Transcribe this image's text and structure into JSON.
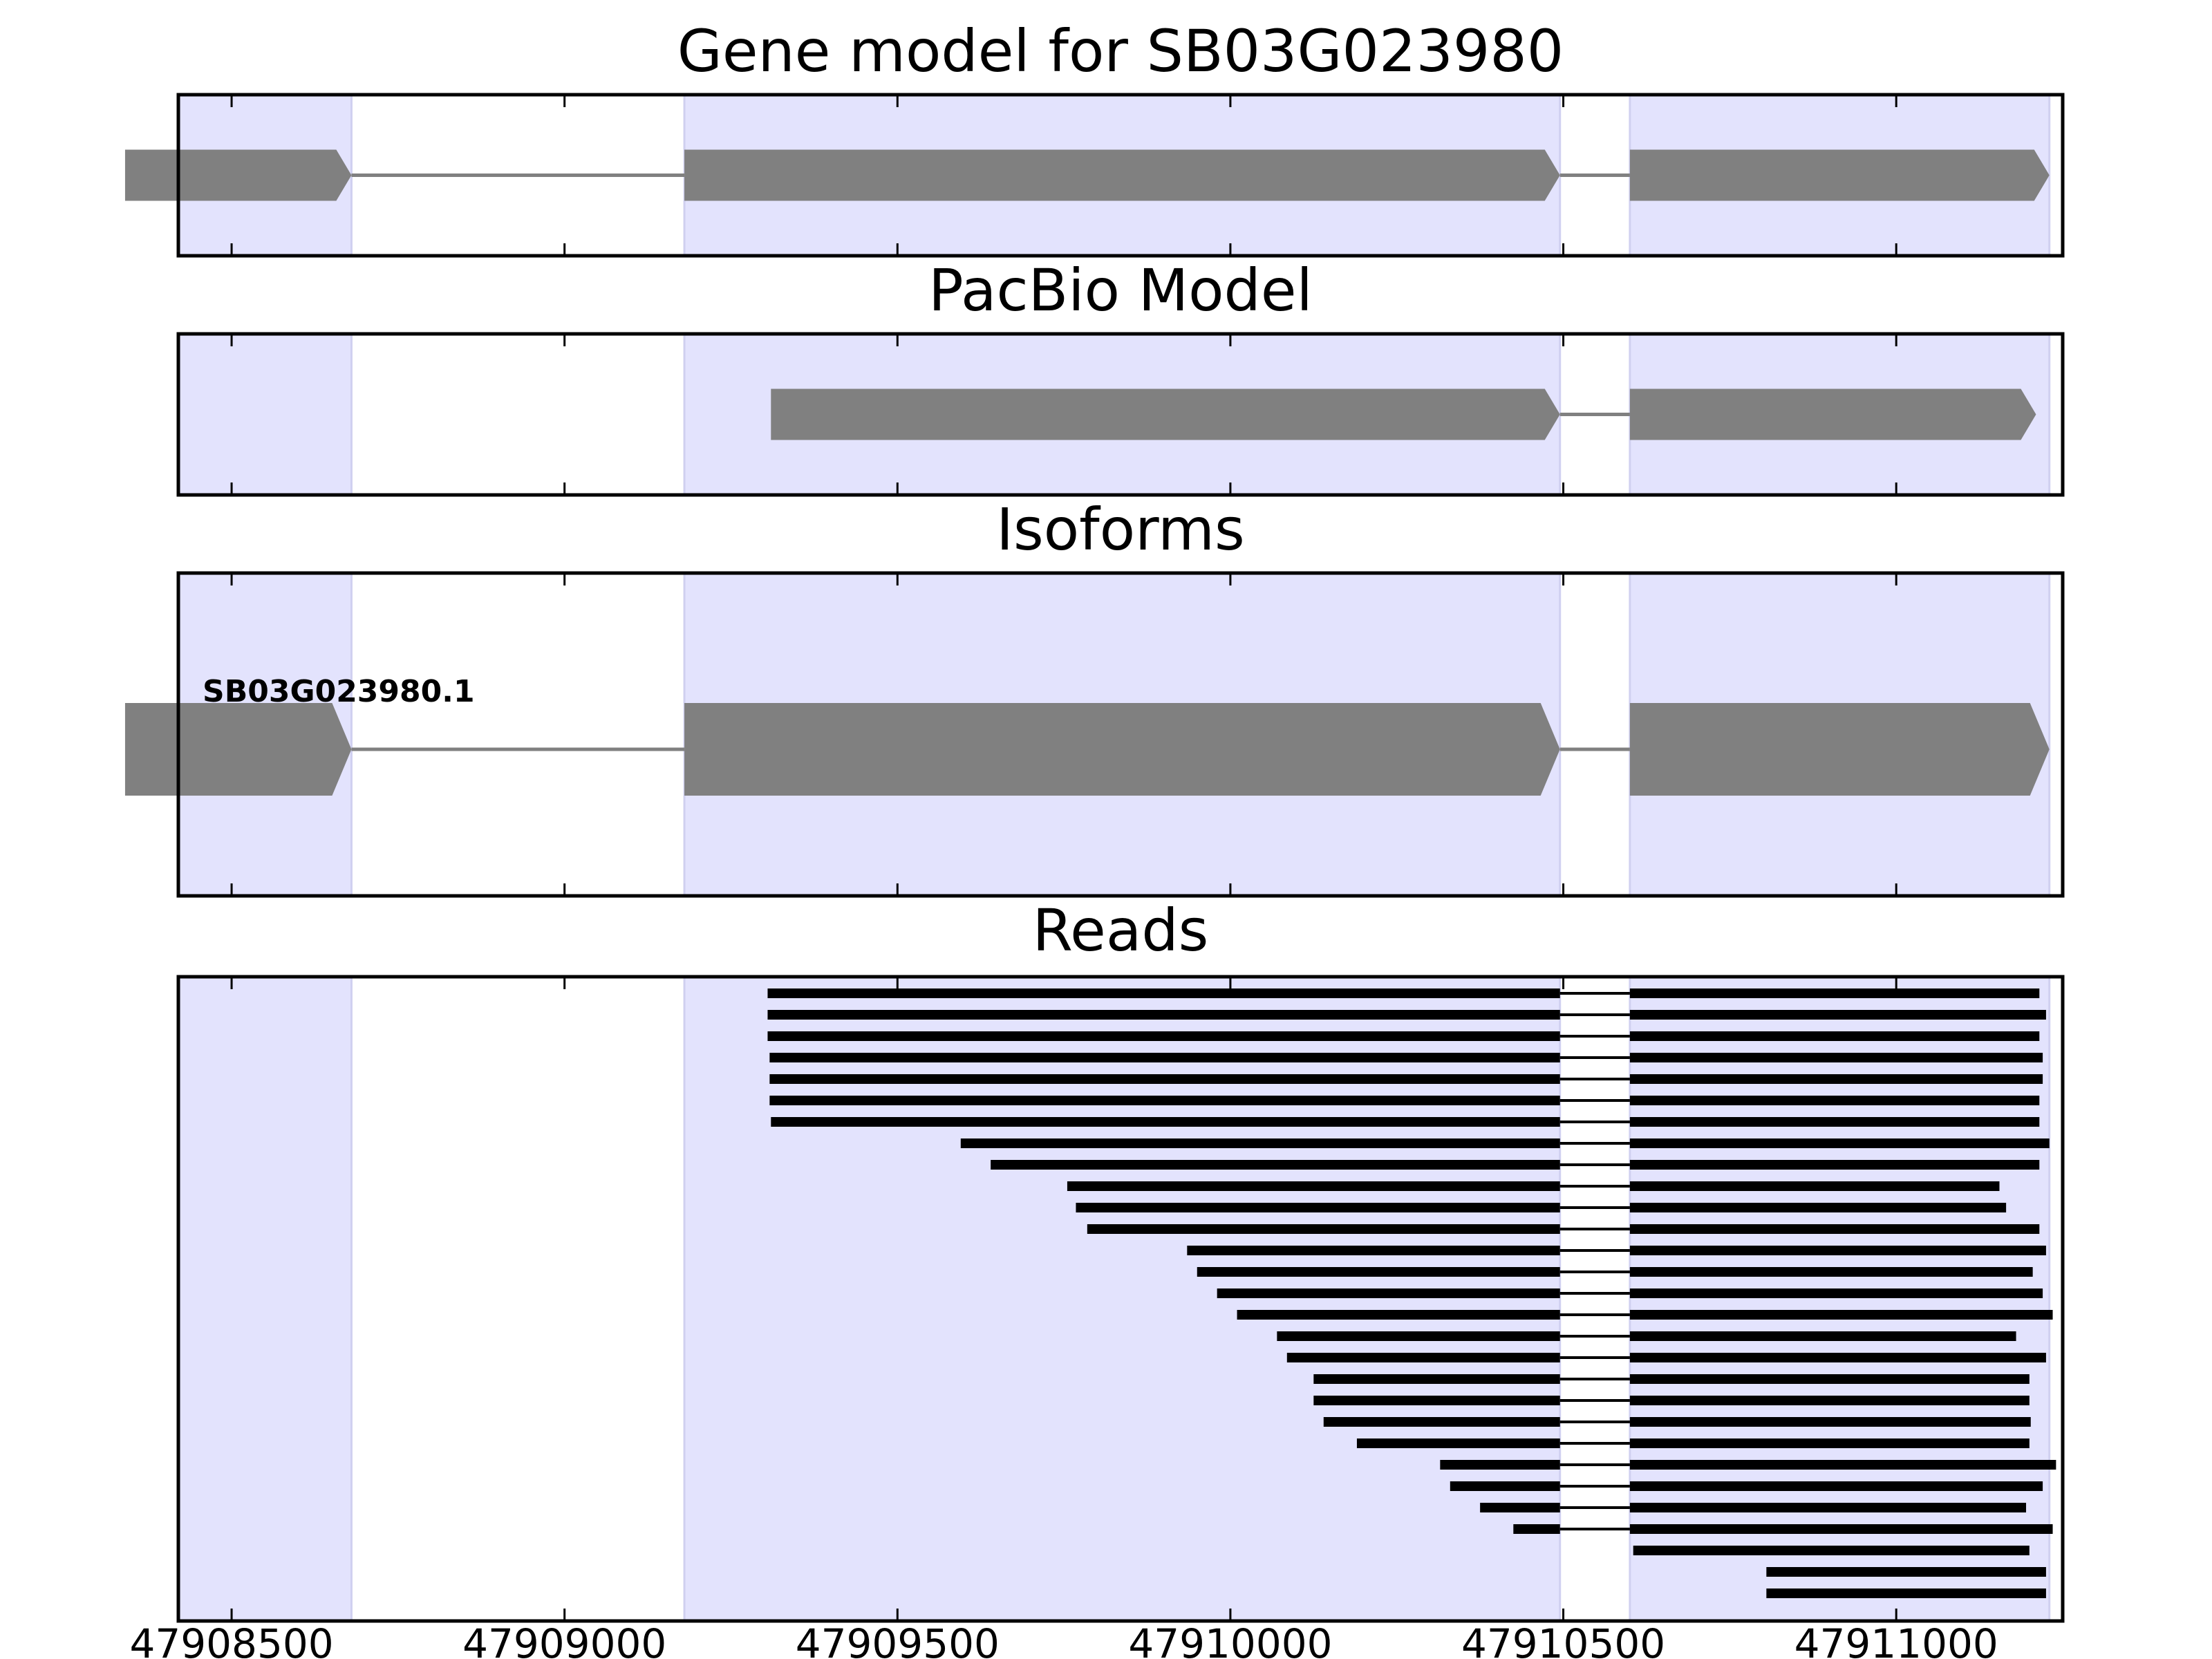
{
  "colors": {
    "exon_shade": "#e3e3fd",
    "exon_shade_edge": "#d0d0f0",
    "feature_gray": "#808080",
    "read_black": "#000000",
    "axis": "#000000"
  },
  "chart_data": [
    {
      "type": "gene_track",
      "title": "Gene model for SB03G023980",
      "strand": "+",
      "exons": [
        [
          47908340,
          47908680
        ],
        [
          47909180,
          47910495
        ],
        [
          47910600,
          47911230
        ]
      ]
    },
    {
      "type": "gene_track",
      "title": "PacBio Model",
      "strand": "+",
      "exons": [
        [
          47909310,
          47910495
        ],
        [
          47910600,
          47911210
        ]
      ]
    },
    {
      "type": "gene_track",
      "title": "Isoforms",
      "strand": "+",
      "isoform_label": "SB03G023980.1",
      "exons": [
        [
          47908340,
          47908680
        ],
        [
          47909180,
          47910495
        ],
        [
          47910600,
          47911230
        ]
      ]
    },
    {
      "type": "reads",
      "title": "Reads",
      "reads": [
        {
          "start": 47909305,
          "end": 47911215
        },
        {
          "start": 47909305,
          "end": 47911225
        },
        {
          "start": 47909305,
          "end": 47911215
        },
        {
          "start": 47909308,
          "end": 47911220
        },
        {
          "start": 47909308,
          "end": 47911220
        },
        {
          "start": 47909308,
          "end": 47911215
        },
        {
          "start": 47909310,
          "end": 47911215
        },
        {
          "start": 47909595,
          "end": 47911230
        },
        {
          "start": 47909640,
          "end": 47911215
        },
        {
          "start": 47909755,
          "end": 47911155
        },
        {
          "start": 47909768,
          "end": 47911165
        },
        {
          "start": 47909785,
          "end": 47911215
        },
        {
          "start": 47909935,
          "end": 47911225
        },
        {
          "start": 47909950,
          "end": 47911205
        },
        {
          "start": 47909980,
          "end": 47911220
        },
        {
          "start": 47910010,
          "end": 47911235
        },
        {
          "start": 47910070,
          "end": 47911180
        },
        {
          "start": 47910085,
          "end": 47911225
        },
        {
          "start": 47910125,
          "end": 47911200
        },
        {
          "start": 47910125,
          "end": 47911200
        },
        {
          "start": 47910140,
          "end": 47911202
        },
        {
          "start": 47910190,
          "end": 47911200
        },
        {
          "start": 47910315,
          "end": 47911240
        },
        {
          "start": 47910330,
          "end": 47911220
        },
        {
          "start": 47910375,
          "end": 47911195
        },
        {
          "start": 47910425,
          "end": 47911235
        },
        {
          "start": 47910605,
          "end": 47911200
        },
        {
          "start": 47910805,
          "end": 47911225
        },
        {
          "start": 47910805,
          "end": 47911225
        }
      ]
    }
  ],
  "x_axis": {
    "xlim": [
      47908420,
      47911250
    ],
    "ticks": [
      47908500,
      47909000,
      47909500,
      47910000,
      47910500,
      47911000
    ],
    "tick_labels": [
      "47908500",
      "47909000",
      "47909500",
      "47910000",
      "47910500",
      "47911000"
    ]
  }
}
